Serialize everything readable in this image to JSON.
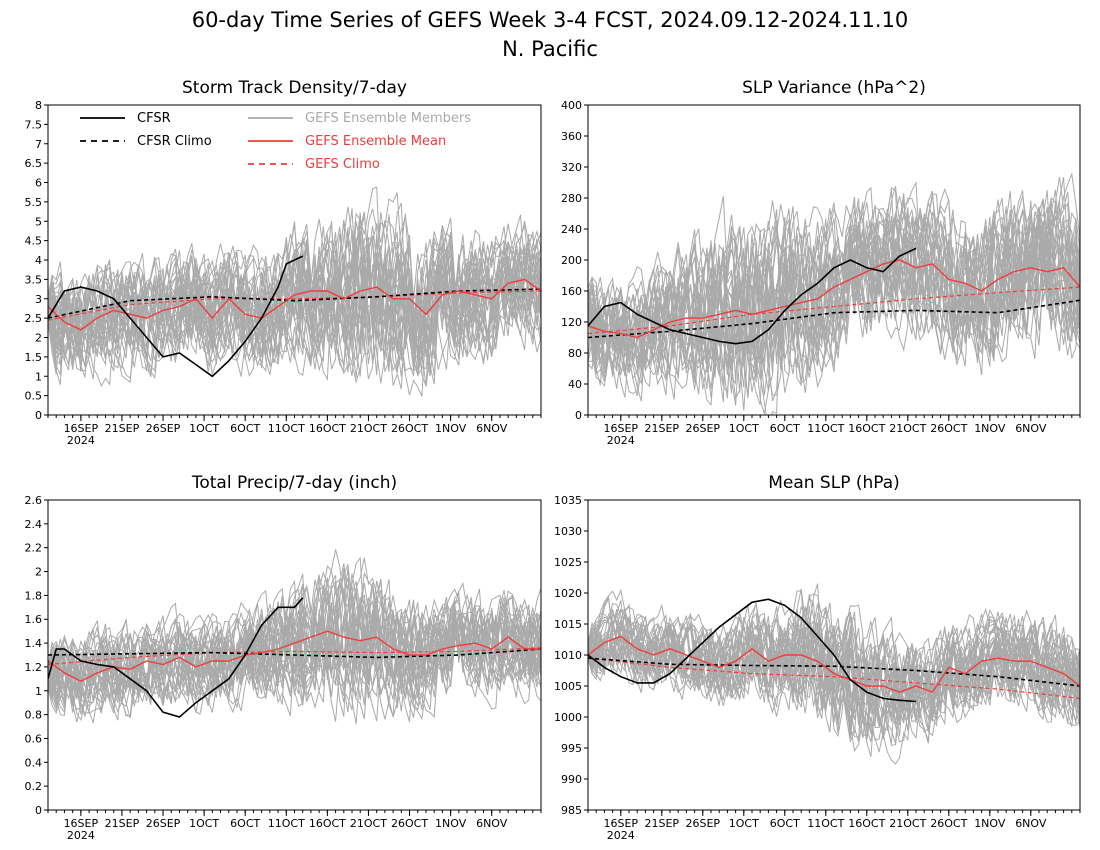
{
  "title": {
    "line1": "60-day Time Series of GEFS Week 3-4 FCST, 2024.09.12-2024.11.10",
    "line2": "N. Pacific"
  },
  "x_axis": {
    "tick_labels": [
      "16SEP",
      "21SEP",
      "26SEP",
      "1OCT",
      "6OCT",
      "11OCT",
      "16OCT",
      "21OCT",
      "26OCT",
      "1NOV",
      "6NOV"
    ],
    "tick_days": [
      4,
      9,
      14,
      19,
      24,
      29,
      34,
      39,
      44,
      49,
      54
    ],
    "year_label": "2024",
    "range_days": [
      0,
      60
    ]
  },
  "legend": {
    "cfsr": "CFSR",
    "cfsr_climo": "CFSR Climo",
    "gefs_members": "GEFS Ensemble Members",
    "gefs_mean": "GEFS Ensemble Mean",
    "gefs_climo": "GEFS Climo"
  },
  "colors": {
    "cfsr": "#000000",
    "gefs_members": "#aaaaaa",
    "gefs_mean": "#f03c3c",
    "gefs_climo": "#f03c3c"
  },
  "chart_data": [
    {
      "type": "line",
      "title": "Storm Track Density/7-day",
      "ylim": [
        0,
        8
      ],
      "yticks": [
        "0",
        "0.5",
        "1",
        "1.5",
        "2",
        "2.5",
        "3",
        "3.5",
        "4",
        "4.5",
        "5",
        "5.5",
        "6",
        "6.5",
        "7",
        "7.5",
        "8"
      ],
      "members": {
        "count": 30,
        "center_day": 40,
        "spread_start": 1.1,
        "spread_end": 1.2
      },
      "series": [
        {
          "key": "cfsr",
          "name": "CFSR",
          "x": [
            0,
            2,
            4,
            6,
            8,
            10,
            12,
            14,
            16,
            18,
            20,
            22,
            24,
            26,
            28,
            29,
            31
          ],
          "y": [
            2.5,
            3.2,
            3.3,
            3.2,
            3.0,
            2.5,
            2.0,
            1.5,
            1.6,
            1.3,
            1.0,
            1.4,
            1.9,
            2.5,
            3.3,
            3.9,
            4.1
          ]
        },
        {
          "key": "cfsr_climo",
          "name": "CFSR Climo",
          "x": [
            0,
            10,
            20,
            30,
            40,
            50,
            60
          ],
          "y": [
            2.5,
            2.95,
            3.05,
            2.95,
            3.05,
            3.2,
            3.25
          ]
        },
        {
          "key": "gefs_mean",
          "name": "GEFS Ensemble Mean",
          "x": [
            0,
            2,
            4,
            6,
            8,
            10,
            12,
            14,
            16,
            18,
            20,
            22,
            24,
            26,
            28,
            30,
            32,
            34,
            36,
            38,
            40,
            42,
            44,
            46,
            48,
            50,
            52,
            54,
            56,
            58,
            60
          ],
          "y": [
            2.8,
            2.4,
            2.2,
            2.5,
            2.7,
            2.6,
            2.5,
            2.7,
            2.8,
            3.0,
            2.5,
            3.0,
            2.6,
            2.5,
            2.8,
            3.1,
            3.2,
            3.2,
            3.0,
            3.2,
            3.3,
            3.0,
            3.0,
            2.6,
            3.1,
            3.2,
            3.1,
            3.0,
            3.4,
            3.5,
            3.2
          ]
        },
        {
          "key": "gefs_climo",
          "name": "GEFS Climo",
          "x": [
            0,
            10,
            20,
            30,
            40,
            50,
            60
          ],
          "y": [
            2.45,
            2.85,
            3.0,
            3.0,
            3.05,
            3.15,
            3.2
          ]
        }
      ]
    },
    {
      "type": "line",
      "title": "SLP Variance (hPa^2)",
      "ylim": [
        0,
        400
      ],
      "yticks": [
        "0",
        "40",
        "80",
        "120",
        "160",
        "200",
        "240",
        "280",
        "320",
        "360",
        "400"
      ],
      "members": {
        "count": 30,
        "center_day": 20,
        "spread_start": 55,
        "spread_end": 80
      },
      "series": [
        {
          "key": "cfsr",
          "name": "CFSR",
          "x": [
            0,
            2,
            4,
            6,
            8,
            10,
            12,
            14,
            16,
            18,
            20,
            22,
            24,
            26,
            28,
            30,
            32,
            34,
            36,
            38,
            40
          ],
          "y": [
            115,
            140,
            145,
            130,
            120,
            110,
            105,
            100,
            95,
            92,
            95,
            110,
            135,
            155,
            170,
            190,
            200,
            190,
            185,
            205,
            215
          ]
        },
        {
          "key": "cfsr_climo",
          "name": "CFSR Climo",
          "x": [
            0,
            10,
            20,
            30,
            40,
            50,
            60
          ],
          "y": [
            100,
            108,
            118,
            132,
            135,
            132,
            148
          ]
        },
        {
          "key": "gefs_mean",
          "name": "GEFS Ensemble Mean",
          "x": [
            0,
            2,
            4,
            6,
            8,
            10,
            12,
            14,
            16,
            18,
            20,
            22,
            24,
            26,
            28,
            30,
            32,
            34,
            36,
            38,
            40,
            42,
            44,
            46,
            48,
            50,
            52,
            54,
            56,
            58,
            60
          ],
          "y": [
            115,
            108,
            105,
            100,
            110,
            120,
            125,
            125,
            130,
            135,
            130,
            135,
            140,
            145,
            150,
            165,
            175,
            185,
            195,
            200,
            190,
            195,
            175,
            170,
            160,
            175,
            185,
            190,
            185,
            190,
            165
          ]
        },
        {
          "key": "gefs_climo",
          "name": "GEFS Climo",
          "x": [
            0,
            10,
            20,
            30,
            40,
            50,
            60
          ],
          "y": [
            105,
            115,
            130,
            140,
            150,
            158,
            165
          ]
        }
      ]
    },
    {
      "type": "line",
      "title": "Total Precip/7-day (inch)",
      "ylim": [
        0,
        2.6
      ],
      "yticks": [
        "0",
        "0.2",
        "0.4",
        "0.6",
        "0.8",
        "1",
        "1.2",
        "1.4",
        "1.6",
        "1.8",
        "2",
        "2.2",
        "2.4",
        "2.6"
      ],
      "members": {
        "count": 30,
        "center_day": 36,
        "spread_start": 0.27,
        "spread_end": 0.32
      },
      "series": [
        {
          "key": "cfsr",
          "name": "CFSR",
          "x": [
            0,
            1,
            2,
            4,
            6,
            8,
            10,
            12,
            14,
            16,
            18,
            20,
            22,
            24,
            26,
            28,
            30,
            31
          ],
          "y": [
            1.1,
            1.35,
            1.35,
            1.25,
            1.22,
            1.2,
            1.1,
            1.0,
            0.82,
            0.78,
            0.9,
            1.0,
            1.1,
            1.3,
            1.55,
            1.7,
            1.7,
            1.78
          ]
        },
        {
          "key": "cfsr_climo",
          "name": "CFSR Climo",
          "x": [
            0,
            10,
            20,
            30,
            40,
            50,
            60
          ],
          "y": [
            1.3,
            1.31,
            1.32,
            1.3,
            1.28,
            1.3,
            1.35
          ]
        },
        {
          "key": "gefs_mean",
          "name": "GEFS Ensemble Mean",
          "x": [
            0,
            2,
            4,
            6,
            8,
            10,
            12,
            14,
            16,
            18,
            20,
            22,
            24,
            26,
            28,
            30,
            32,
            34,
            36,
            38,
            40,
            42,
            44,
            46,
            48,
            50,
            52,
            54,
            56,
            58,
            60
          ],
          "y": [
            1.25,
            1.15,
            1.08,
            1.15,
            1.2,
            1.18,
            1.25,
            1.22,
            1.28,
            1.2,
            1.25,
            1.25,
            1.3,
            1.32,
            1.35,
            1.4,
            1.45,
            1.5,
            1.45,
            1.42,
            1.45,
            1.35,
            1.3,
            1.3,
            1.35,
            1.38,
            1.4,
            1.35,
            1.45,
            1.35,
            1.35
          ]
        },
        {
          "key": "gefs_climo",
          "name": "GEFS Climo",
          "x": [
            0,
            10,
            20,
            30,
            40,
            50,
            60
          ],
          "y": [
            1.22,
            1.28,
            1.32,
            1.33,
            1.32,
            1.33,
            1.36
          ]
        }
      ]
    },
    {
      "type": "line",
      "title": "Mean SLP (hPa)",
      "ylim": [
        985,
        1035
      ],
      "yticks": [
        "985",
        "990",
        "995",
        "1000",
        "1005",
        "1010",
        "1015",
        "1020",
        "1025",
        "1030",
        "1035"
      ],
      "members": {
        "count": 30,
        "center_day": 30,
        "spread_start": 4.5,
        "spread_end": 6
      },
      "series": [
        {
          "key": "cfsr",
          "name": "CFSR",
          "x": [
            0,
            2,
            4,
            6,
            8,
            10,
            12,
            14,
            16,
            18,
            20,
            22,
            24,
            26,
            28,
            30,
            32,
            34,
            36,
            38,
            40
          ],
          "y": [
            1010,
            1008,
            1006.5,
            1005.5,
            1005.5,
            1007,
            1009.5,
            1012,
            1014.5,
            1016.5,
            1018.5,
            1019,
            1018,
            1016,
            1013,
            1010,
            1006,
            1004,
            1003,
            1002.7,
            1002.5
          ]
        },
        {
          "key": "cfsr_climo",
          "name": "CFSR Climo",
          "x": [
            0,
            10,
            20,
            30,
            40,
            50,
            60
          ],
          "y": [
            1009.5,
            1008.5,
            1008.3,
            1008.2,
            1007.5,
            1006.5,
            1005
          ]
        },
        {
          "key": "gefs_mean",
          "name": "GEFS Ensemble Mean",
          "x": [
            0,
            2,
            4,
            6,
            8,
            10,
            12,
            14,
            16,
            18,
            20,
            22,
            24,
            26,
            28,
            30,
            32,
            34,
            36,
            38,
            40,
            42,
            44,
            46,
            48,
            50,
            52,
            54,
            56,
            58,
            60
          ],
          "y": [
            1010,
            1012,
            1013,
            1011,
            1010,
            1011,
            1010,
            1009,
            1008,
            1009,
            1011,
            1009,
            1010,
            1010,
            1009,
            1007,
            1006,
            1005,
            1005,
            1004,
            1005,
            1004,
            1008,
            1007,
            1009,
            1009.5,
            1009,
            1009,
            1008,
            1007,
            1005
          ]
        },
        {
          "key": "gefs_climo",
          "name": "GEFS Climo",
          "x": [
            0,
            10,
            20,
            30,
            40,
            50,
            60
          ],
          "y": [
            1009.5,
            1008,
            1007,
            1006.5,
            1005.5,
            1004.5,
            1003
          ]
        }
      ]
    }
  ]
}
